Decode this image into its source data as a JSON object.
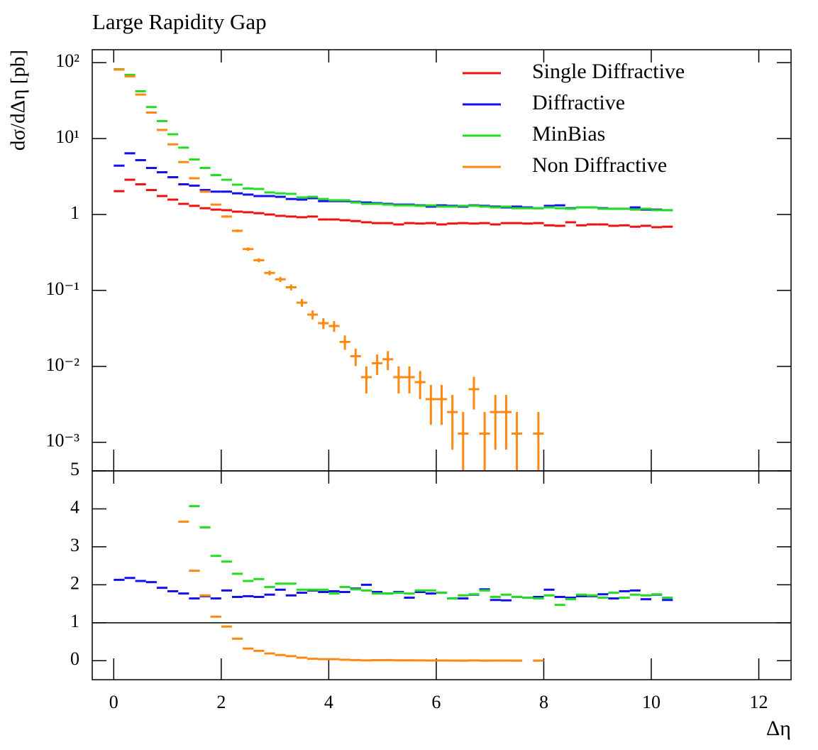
{
  "chart_data": [
    {
      "type": "histogram",
      "title": "Large Rapidity Gap",
      "ylabel": "dσ/dΔη [pb]",
      "log_y": true,
      "legend": "upper right",
      "xlim": [
        -0.4,
        12.6
      ],
      "ylim": [
        0.00042,
        148
      ],
      "yticks": [
        {
          "value": 0.001,
          "label": "10⁻³"
        },
        {
          "value": 0.01,
          "label": "10⁻²"
        },
        {
          "value": 0.1,
          "label": "10⁻¹"
        },
        1,
        {
          "value": 10,
          "label": "10¹"
        },
        {
          "value": 100,
          "label": "10²"
        }
      ],
      "bins": [
        0,
        0.2,
        0.4,
        0.6,
        0.8,
        1,
        1.2,
        1.4,
        1.6,
        1.8,
        2,
        2.2,
        2.4,
        2.6,
        2.8,
        3,
        3.2,
        3.4,
        3.6,
        3.8,
        4,
        4.2,
        4.4,
        4.6,
        4.8,
        5,
        5.2,
        5.4,
        5.6,
        5.8,
        6,
        6.2,
        6.4,
        6.6,
        6.8,
        7,
        7.2,
        7.4,
        7.6,
        7.8,
        8,
        8.2,
        8.4,
        8.6,
        8.8,
        9,
        9.2,
        9.4,
        9.6,
        9.8,
        10,
        10.2,
        10.4
      ],
      "series": [
        {
          "name": "Single Diffractive",
          "color": "#ee1111",
          "values": [
            2.03,
            2.87,
            2.5,
            2.1,
            1.75,
            1.57,
            1.38,
            1.3,
            1.21,
            1.16,
            1.14,
            1.09,
            1.07,
            1.04,
            1.0,
            0.96,
            0.94,
            0.92,
            0.94,
            0.86,
            0.86,
            0.84,
            0.82,
            0.79,
            0.77,
            0.77,
            0.74,
            0.77,
            0.76,
            0.77,
            0.74,
            0.76,
            0.77,
            0.76,
            0.77,
            0.74,
            0.77,
            0.77,
            0.76,
            0.77,
            0.72,
            0.71,
            0.79,
            0.72,
            0.74,
            0.74,
            0.71,
            0.72,
            0.69,
            0.71,
            0.68,
            0.69
          ]
        },
        {
          "name": "Diffractive",
          "color": "#1111ee",
          "values": [
            4.4,
            6.4,
            5.2,
            4.1,
            3.6,
            3.1,
            2.5,
            2.4,
            2.1,
            2.0,
            2.0,
            1.9,
            1.83,
            1.75,
            1.75,
            1.71,
            1.6,
            1.57,
            1.64,
            1.5,
            1.5,
            1.5,
            1.47,
            1.44,
            1.41,
            1.38,
            1.35,
            1.35,
            1.32,
            1.27,
            1.32,
            1.3,
            1.27,
            1.32,
            1.3,
            1.27,
            1.24,
            1.27,
            1.24,
            1.21,
            1.3,
            1.32,
            1.21,
            1.24,
            1.24,
            1.21,
            1.19,
            1.19,
            1.24,
            1.16,
            1.16,
            1.14
          ]
        },
        {
          "name": "MinBias",
          "color": "#22dd22",
          "values": [
            82,
            69,
            42,
            26,
            17,
            11.4,
            7.6,
            5.3,
            4.1,
            3.3,
            2.87,
            2.47,
            2.2,
            2.17,
            1.95,
            1.9,
            1.87,
            1.68,
            1.71,
            1.6,
            1.54,
            1.54,
            1.44,
            1.38,
            1.38,
            1.35,
            1.32,
            1.32,
            1.3,
            1.32,
            1.27,
            1.27,
            1.3,
            1.3,
            1.27,
            1.24,
            1.27,
            1.21,
            1.21,
            1.21,
            1.24,
            1.21,
            1.19,
            1.24,
            1.24,
            1.19,
            1.19,
            1.19,
            1.16,
            1.19,
            1.14,
            1.14
          ]
        },
        {
          "name": "Non Diffractive",
          "color": "#ff8811",
          "values": [
            81,
            66,
            38,
            22,
            13,
            8.4,
            4.9,
            3.0,
            2.0,
            1.35,
            0.94,
            0.61,
            0.35,
            0.25,
            0.17,
            0.14,
            0.11,
            0.069,
            0.048,
            0.037,
            0.034,
            0.021,
            0.0136,
            0.0072,
            0.011,
            0.0124,
            0.0072,
            0.0072,
            0.0062,
            0.0037,
            0.0037,
            0.0025,
            0.0013,
            0.005,
            0.0013,
            0.0025,
            0.0025,
            0.0013,
            null,
            0.0013,
            null,
            null,
            null,
            null,
            null,
            null,
            null,
            null,
            null,
            null,
            null,
            null
          ],
          "errors": [
            1,
            0.8,
            0.6,
            0.4,
            0.3,
            0.2,
            0.12,
            0.08,
            0.06,
            0.04,
            0.035,
            0.024,
            0.018,
            0.015,
            0.012,
            0.011,
            0.01,
            0.008,
            0.0065,
            0.006,
            0.0055,
            0.0045,
            0.0035,
            0.0028,
            0.0033,
            0.0035,
            0.0028,
            0.0028,
            0.0025,
            0.002,
            0.002,
            0.0017,
            0.0012,
            0.0023,
            0.0012,
            0.0017,
            0.0017,
            0.0012,
            null,
            0.0012,
            null,
            null,
            null,
            null,
            null,
            null,
            null,
            null,
            null,
            null,
            null,
            null
          ]
        }
      ]
    },
    {
      "type": "histogram",
      "xlabel": "Δη",
      "log_y": false,
      "xlim": [
        -0.4,
        12.6
      ],
      "ylim": [
        -0.5,
        5
      ],
      "xticks": [
        0,
        2,
        4,
        6,
        8,
        10,
        12
      ],
      "yticks": [
        0,
        1,
        2,
        3,
        4,
        5
      ],
      "reference_line": 1,
      "bins": [
        0,
        0.2,
        0.4,
        0.6,
        0.8,
        1,
        1.2,
        1.4,
        1.6,
        1.8,
        2,
        2.2,
        2.4,
        2.6,
        2.8,
        3,
        3.2,
        3.4,
        3.6,
        3.8,
        4,
        4.2,
        4.4,
        4.6,
        4.8,
        5,
        5.2,
        5.4,
        5.6,
        5.8,
        6,
        6.2,
        6.4,
        6.6,
        6.8,
        7,
        7.2,
        7.4,
        7.6,
        7.8,
        8,
        8.2,
        8.4,
        8.6,
        8.8,
        9,
        9.2,
        9.4,
        9.6,
        9.8,
        10,
        10.2,
        10.4
      ],
      "series": [
        {
          "color": "#1111ee",
          "values": [
            2.13,
            2.18,
            2.1,
            2.07,
            1.92,
            1.83,
            1.77,
            1.64,
            1.7,
            1.64,
            1.85,
            1.68,
            1.7,
            1.68,
            1.74,
            1.87,
            1.72,
            1.79,
            1.85,
            1.81,
            1.83,
            1.81,
            1.9,
            2.0,
            1.81,
            1.77,
            1.81,
            1.66,
            1.81,
            1.77,
            1.79,
            1.64,
            1.64,
            1.74,
            1.88,
            1.6,
            1.59,
            1.68,
            1.66,
            1.68,
            1.87,
            1.68,
            1.66,
            1.7,
            1.7,
            1.75,
            1.64,
            1.83,
            1.85,
            1.62,
            1.74,
            1.6
          ]
        },
        {
          "color": "#22dd22",
          "values": [
            null,
            null,
            null,
            null,
            null,
            null,
            null,
            4.07,
            3.51,
            2.76,
            2.61,
            2.29,
            2.1,
            2.15,
            1.94,
            2.03,
            2.03,
            1.87,
            1.87,
            1.87,
            1.77,
            1.94,
            1.88,
            1.85,
            1.77,
            1.77,
            1.79,
            1.77,
            1.85,
            1.85,
            1.79,
            1.64,
            1.72,
            1.75,
            1.85,
            1.68,
            1.74,
            1.68,
            1.66,
            1.64,
            1.72,
            1.47,
            1.62,
            1.74,
            1.72,
            1.66,
            1.79,
            1.66,
            1.74,
            1.72,
            1.75,
            1.66
          ]
        },
        {
          "color": "#ff8811",
          "values": [
            null,
            null,
            null,
            null,
            null,
            null,
            3.66,
            2.37,
            1.72,
            1.16,
            0.9,
            0.58,
            0.32,
            0.26,
            0.19,
            0.15,
            0.12,
            0.08,
            0.05,
            0.04,
            0.04,
            0.025,
            0.017,
            0.009,
            0.014,
            0.016,
            0.01,
            0.01,
            0.008,
            0.005,
            0.005,
            0.003,
            0.002,
            0.007,
            0.002,
            0.003,
            0.003,
            0.002,
            null,
            0.002,
            null,
            null,
            null,
            null,
            null,
            null,
            null,
            null,
            null,
            null,
            null,
            null
          ]
        }
      ]
    }
  ]
}
